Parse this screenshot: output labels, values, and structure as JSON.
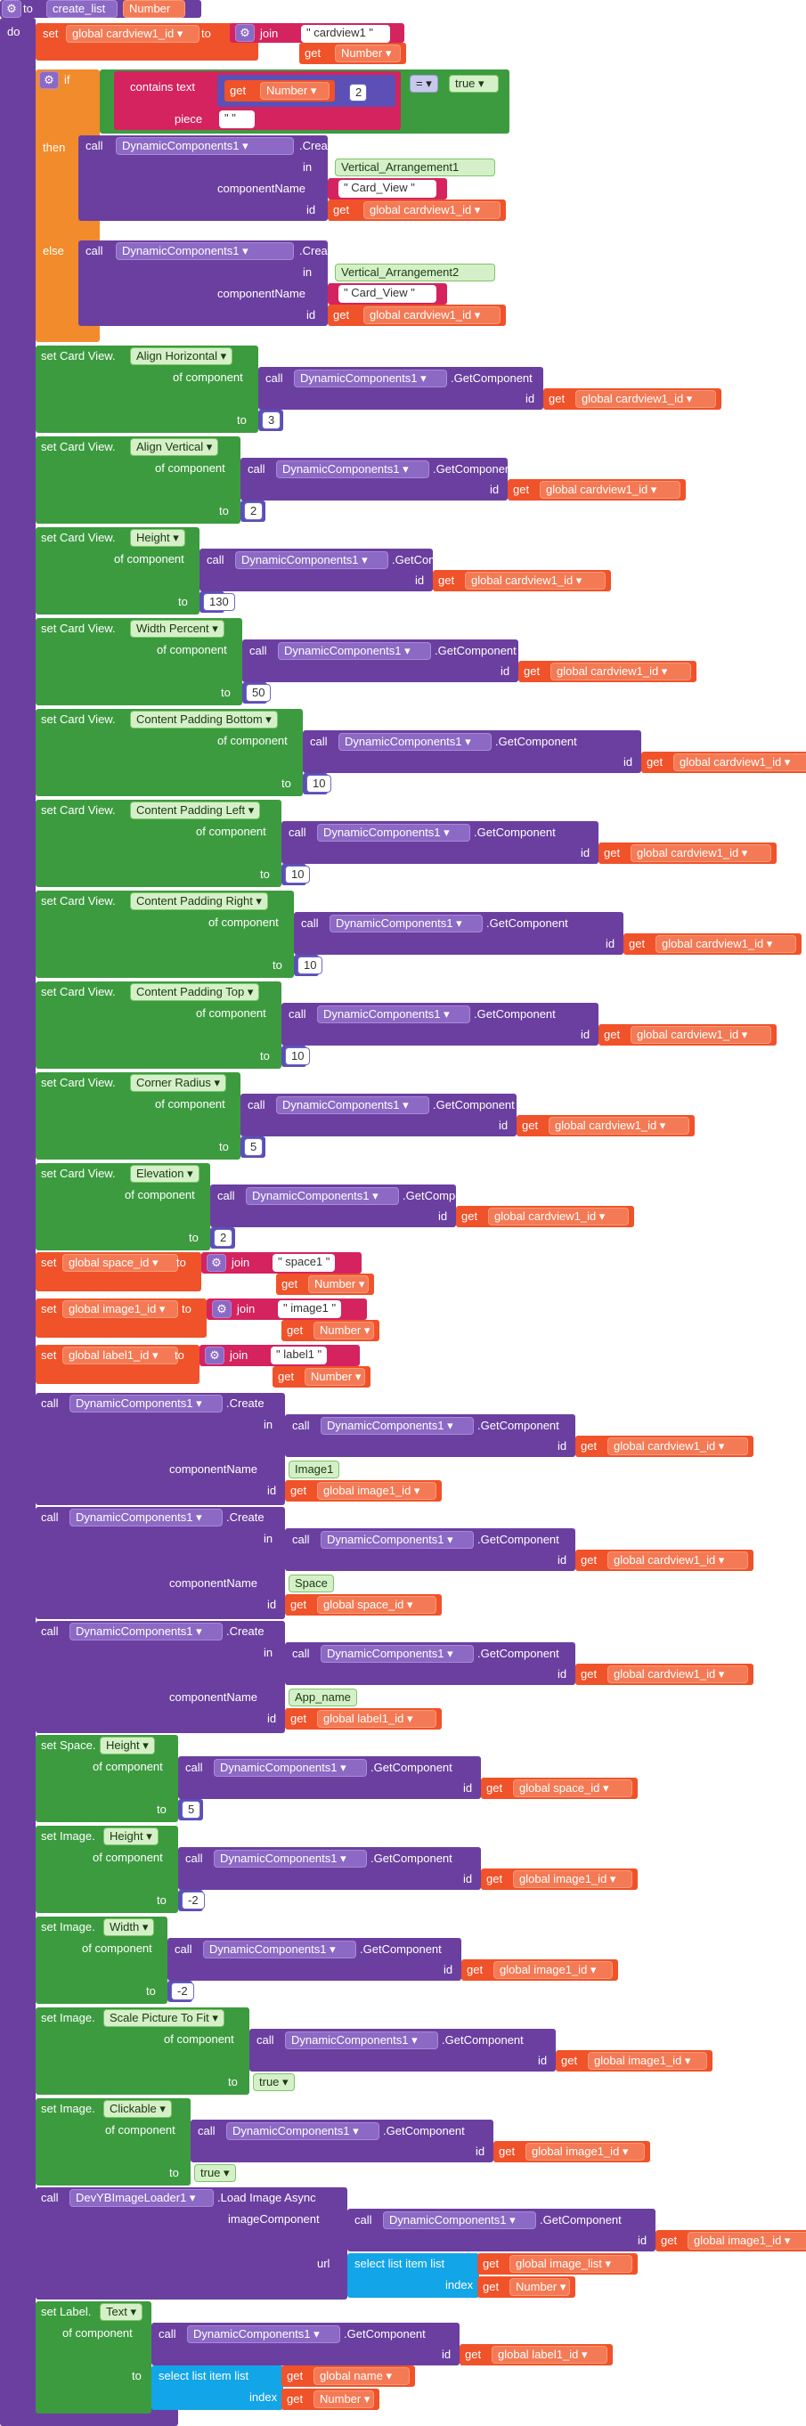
{
  "procedure": {
    "to": "to",
    "name": "create_list",
    "param": "Number",
    "do": "do"
  },
  "kw": {
    "set": "set",
    "to": "to",
    "get": "get",
    "join": "join",
    "if": "if",
    "then": "then",
    "else": "else",
    "call": "call",
    "in": "in",
    "id": "id",
    "componentName": "componentName",
    "of_component": "of component",
    "contains_text": "contains text",
    "piece": "piece",
    "eq": "=",
    "true": "true",
    "create": ".Create",
    "getcomponent": ".GetComponent",
    "load_image_async": ".Load Image Async",
    "imageComponent": "imageComponent",
    "url": "url",
    "select_list_item": "select list item  list",
    "index": "index",
    "card_view": "set Card View.",
    "space": "set Space.",
    "image": "set Image.",
    "label": "set Label."
  },
  "vars": {
    "cardview1_id": "global cardview1_id",
    "space_id": "global space_id",
    "image1_id": "global image1_id",
    "label1_id": "global label1_id",
    "number": "Number",
    "image_list": "global image_list",
    "name": "global name"
  },
  "components": {
    "dc": "DynamicComponents1",
    "loader": "DevYBImageLoader1"
  },
  "strings": {
    "cardview1": "cardview1",
    "space1": "space1",
    "image1": "image1",
    "label1": "label1",
    "blank": " "
  },
  "arrangements": {
    "v1": "Vertical_Arrangement1",
    "v2": "Vertical_Arrangement2"
  },
  "component_types": {
    "card_view": "Card_View",
    "image": "Image1",
    "space": "Space",
    "app_name": "App_name"
  },
  "numbers": {
    "two": "2",
    "three": "3",
    "one_thirty": "130",
    "fifty": "50",
    "ten": "10",
    "five": "5",
    "minus_two": "-2"
  },
  "props": {
    "align_horizontal": "Align Horizontal",
    "align_vertical": "Align Vertical",
    "height": "Height",
    "width_percent": "Width Percent",
    "content_padding_bottom": "Content Padding Bottom",
    "content_padding_left": "Content Padding Left",
    "content_padding_right": "Content Padding Right",
    "content_padding_top": "Content Padding Top",
    "corner_radius": "Corner Radius",
    "elevation": "Elevation",
    "width": "Width",
    "scale_picture_to_fit": "Scale Picture To Fit",
    "clickable": "Clickable",
    "text": "Text"
  },
  "colors": {
    "procedure": "#6b3fa0",
    "control": "#f28b2c",
    "component_setter": "#3c9b3f",
    "variable": "#f0522a",
    "text": "#d4235f",
    "math": "#5c4fb5",
    "list": "#12a5e8"
  },
  "icons": [
    "gear-icon",
    "dropdown-arrow-icon"
  ]
}
